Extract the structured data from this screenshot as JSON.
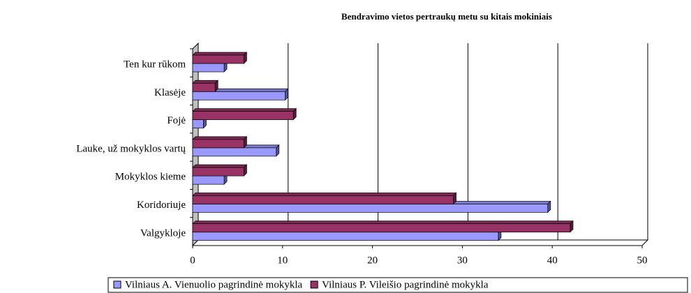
{
  "chart_data": {
    "type": "bar",
    "orientation": "horizontal",
    "title": "Bendravimo vietos pertraukų metu su kitais mokiniais",
    "categories": [
      "Valgykloje",
      "Koridoriuje",
      "Mokyklos kieme",
      "Lauke, už mokyklos vartų",
      "Fojė",
      "Klasėje",
      "Ten kur rūkom"
    ],
    "series": [
      {
        "name": "Vilniaus A. Vienuolio pagrindinė mokykla",
        "color": "#9999ff",
        "values": [
          34,
          39.5,
          3.5,
          9.3,
          1.2,
          10.3,
          3.5
        ]
      },
      {
        "name": "Vilniaus P. Vileišio pagrindinė mokykla",
        "color": "#993366",
        "values": [
          42,
          29,
          5.7,
          5.7,
          11.2,
          2.5,
          5.7
        ]
      }
    ],
    "xlim": [
      0,
      50
    ],
    "xticks": [
      0,
      10,
      20,
      30,
      40,
      50
    ],
    "grid": true,
    "legend": "bottom"
  }
}
